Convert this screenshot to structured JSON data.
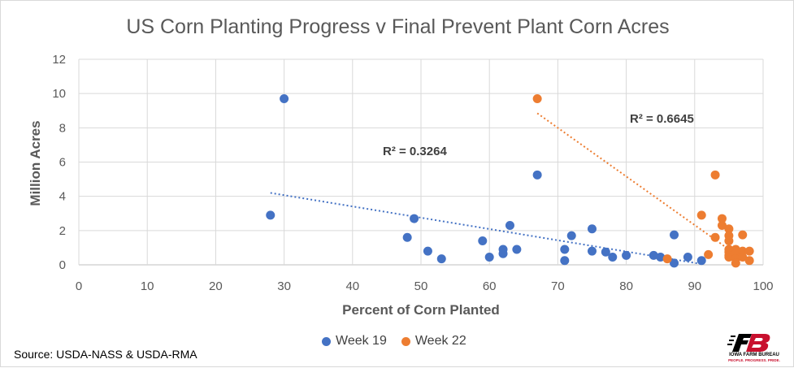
{
  "chart_data": {
    "type": "scatter",
    "title": "US Corn Planting Progress v Final Prevent Plant Corn Acres",
    "xlabel": "Percent of Corn Planted",
    "ylabel": "Million Acres",
    "xlim": [
      0,
      100
    ],
    "ylim": [
      0,
      12
    ],
    "xticks": [
      "0",
      "10",
      "20",
      "30",
      "40",
      "50",
      "60",
      "70",
      "80",
      "90",
      "100"
    ],
    "yticks": [
      "0",
      "2",
      "4",
      "6",
      "8",
      "10",
      "12"
    ],
    "grid": true,
    "legend_position": "bottom",
    "series": [
      {
        "name": "Week 19",
        "color": "#4472c4",
        "points": [
          [
            28,
            2.9
          ],
          [
            30,
            9.7
          ],
          [
            48,
            1.6
          ],
          [
            49,
            2.7
          ],
          [
            51,
            0.8
          ],
          [
            53,
            0.35
          ],
          [
            59,
            1.4
          ],
          [
            60,
            0.45
          ],
          [
            62,
            0.9
          ],
          [
            62,
            0.65
          ],
          [
            63,
            2.3
          ],
          [
            64,
            0.9
          ],
          [
            67,
            5.25
          ],
          [
            71,
            0.25
          ],
          [
            71,
            0.9
          ],
          [
            72,
            1.7
          ],
          [
            75,
            0.8
          ],
          [
            75,
            2.1
          ],
          [
            77,
            0.75
          ],
          [
            78,
            0.45
          ],
          [
            80,
            0.55
          ],
          [
            84,
            0.55
          ],
          [
            85,
            0.45
          ],
          [
            87,
            0.1
          ],
          [
            87,
            1.75
          ],
          [
            89,
            0.45
          ],
          [
            91,
            0.25
          ]
        ],
        "trendline": {
          "x": [
            28,
            91
          ],
          "y": [
            4.2,
            0.05
          ]
        },
        "r2_label": "R² = 0.3264"
      },
      {
        "name": "Week 22",
        "color": "#ed7d31",
        "points": [
          [
            67,
            9.7
          ],
          [
            86,
            0.35
          ],
          [
            91,
            2.9
          ],
          [
            92,
            0.6
          ],
          [
            93,
            1.6
          ],
          [
            93,
            5.25
          ],
          [
            94,
            2.7
          ],
          [
            94,
            2.3
          ],
          [
            95,
            2.1
          ],
          [
            95,
            1.7
          ],
          [
            95,
            1.4
          ],
          [
            95,
            0.9
          ],
          [
            95,
            0.75
          ],
          [
            95,
            0.55
          ],
          [
            95,
            0.45
          ],
          [
            96,
            0.9
          ],
          [
            96,
            0.65
          ],
          [
            96,
            0.35
          ],
          [
            96,
            0.1
          ],
          [
            97,
            1.75
          ],
          [
            97,
            0.8
          ],
          [
            97,
            0.45
          ],
          [
            98,
            0.8
          ],
          [
            98,
            0.25
          ]
        ],
        "trendline": {
          "x": [
            67,
            98
          ],
          "y": [
            8.85,
            0.05
          ]
        },
        "r2_label": "R² = 0.6645"
      }
    ]
  },
  "source": "Source: USDA-NASS & USDA-RMA",
  "logo": {
    "mark": "FB",
    "name": "IOWA FARM BUREAU",
    "tagline": "PEOPLE. PROGRESS. PRIDE."
  }
}
